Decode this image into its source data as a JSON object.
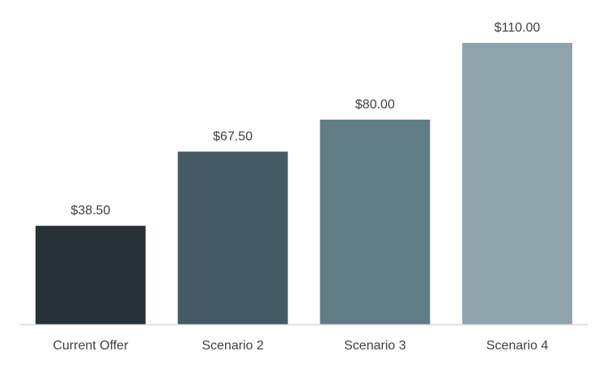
{
  "chart_data": {
    "type": "bar",
    "categories": [
      "Current Offer",
      "Scenario 2",
      "Scenario 3",
      "Scenario 4"
    ],
    "values": [
      38.5,
      67.5,
      80.0,
      110.0
    ],
    "data_labels": [
      "$38.50",
      "$67.50",
      "$80.00",
      "$110.00"
    ],
    "colors": [
      "#263238",
      "#455A64",
      "#607D86",
      "#90A4AE"
    ],
    "axis_color": "#d9d9d9",
    "label_color": "#404040",
    "title": "",
    "xlabel": "",
    "ylabel": "",
    "ylim": [
      0,
      110
    ],
    "grid": false,
    "legend": "none"
  }
}
